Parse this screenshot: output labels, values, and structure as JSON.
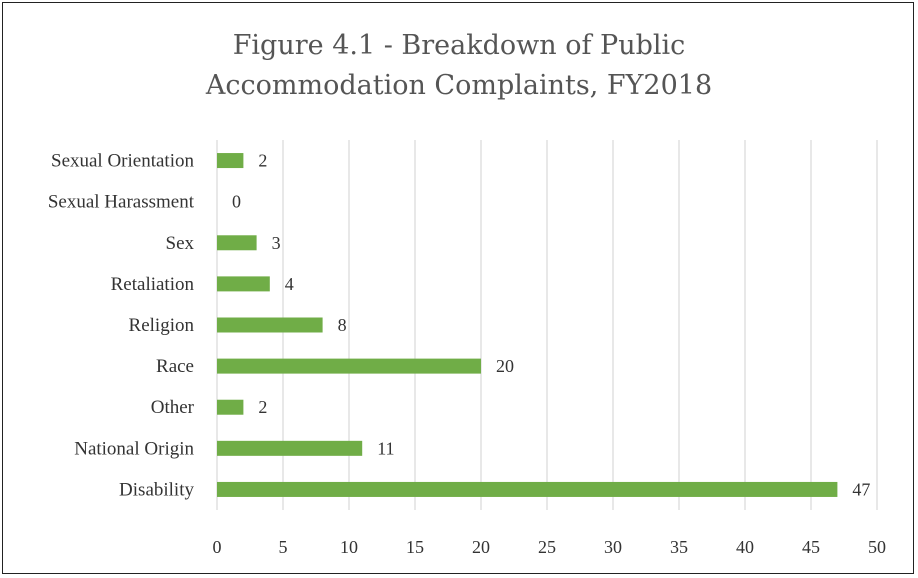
{
  "chart_data": {
    "type": "bar",
    "orientation": "horizontal",
    "title_line1": "Figure 4.1 - Breakdown of Public",
    "title_line2": "Accommodation Complaints, FY2018",
    "categories": [
      "Disability",
      "National Origin",
      "Other",
      "Race",
      "Religion",
      "Retaliation",
      "Sex",
      "Sexual Harassment",
      "Sexual Orientation"
    ],
    "values": [
      47,
      11,
      2,
      20,
      8,
      4,
      3,
      0,
      2
    ],
    "xlim": [
      0,
      50
    ],
    "xticks": [
      0,
      5,
      10,
      15,
      20,
      25,
      30,
      35,
      40,
      45,
      50
    ],
    "grid": true,
    "data_labels": true,
    "bar_color": "#70ad47"
  }
}
